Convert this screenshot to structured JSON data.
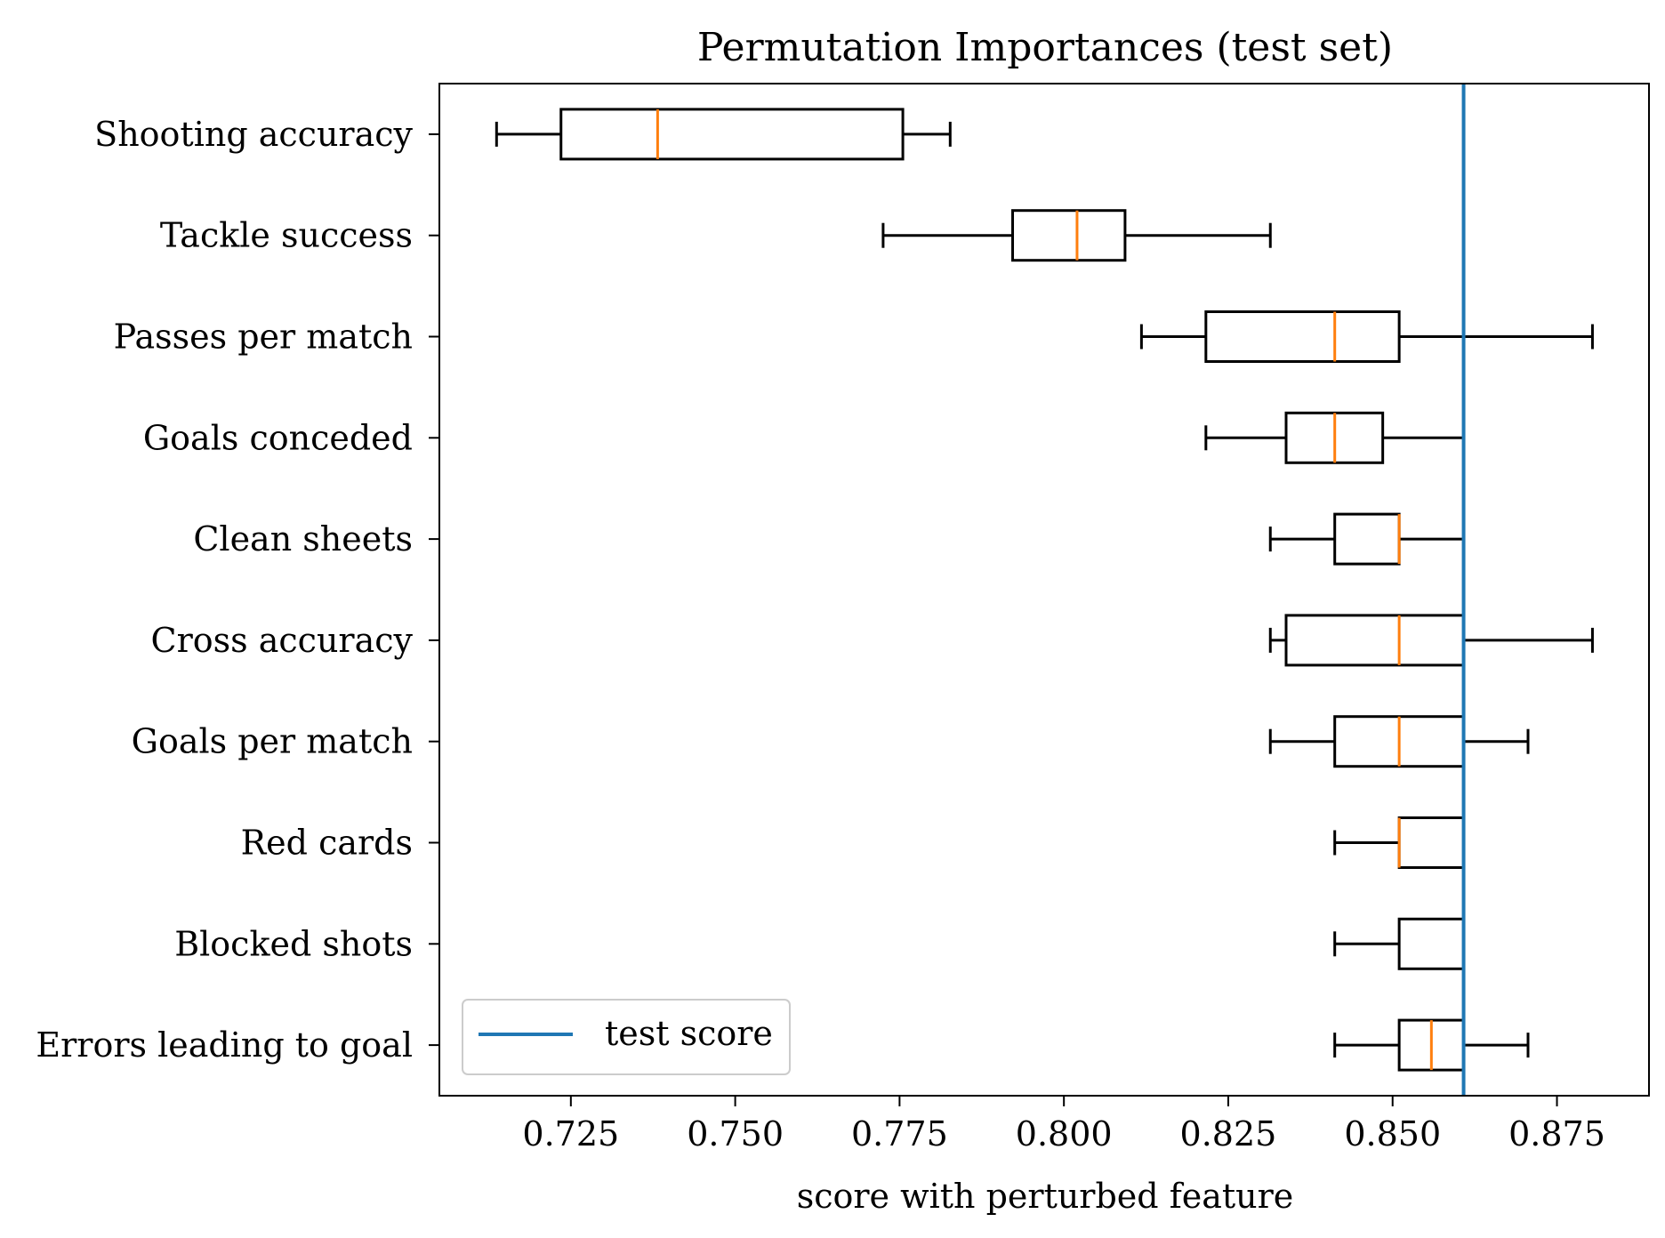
{
  "chart_data": {
    "type": "boxplot",
    "orientation": "horizontal",
    "title": "Permutation Importances (test set)",
    "xlabel": "score with perturbed feature",
    "ylabel": "",
    "xlim": [
      0.705,
      0.889
    ],
    "x_ticks": [
      0.725,
      0.75,
      0.775,
      0.8,
      0.825,
      0.85,
      0.875
    ],
    "x_tick_labels": [
      "0.725",
      "0.750",
      "0.775",
      "0.800",
      "0.825",
      "0.850",
      "0.875"
    ],
    "grid": false,
    "categories": [
      "Shooting accuracy",
      "Tackle success",
      "Passes per match",
      "Goals conceded",
      "Clean sheets",
      "Cross accuracy",
      "Goals per match",
      "Red cards",
      "Blocked shots",
      "Errors leading to goal"
    ],
    "boxes": [
      {
        "whisker_low": 0.7137,
        "q1": 0.7235,
        "median": 0.7382,
        "q3": 0.7755,
        "whisker_high": 0.7827
      },
      {
        "whisker_low": 0.7725,
        "q1": 0.7922,
        "median": 0.802,
        "q3": 0.8093,
        "whisker_high": 0.8314
      },
      {
        "whisker_low": 0.8118,
        "q1": 0.8216,
        "median": 0.8412,
        "q3": 0.851,
        "whisker_high": 0.8804
      },
      {
        "whisker_low": 0.8216,
        "q1": 0.8338,
        "median": 0.8412,
        "q3": 0.8485,
        "whisker_high": 0.8608
      },
      {
        "whisker_low": 0.8314,
        "q1": 0.8412,
        "median": 0.851,
        "q3": 0.851,
        "whisker_high": 0.8608
      },
      {
        "whisker_low": 0.8314,
        "q1": 0.8338,
        "median": 0.851,
        "q3": 0.8608,
        "whisker_high": 0.8804
      },
      {
        "whisker_low": 0.8314,
        "q1": 0.8412,
        "median": 0.851,
        "q3": 0.8608,
        "whisker_high": 0.8706
      },
      {
        "whisker_low": 0.8412,
        "q1": 0.851,
        "median": 0.851,
        "q3": 0.8608,
        "whisker_high": 0.8608
      },
      {
        "whisker_low": 0.8412,
        "q1": 0.851,
        "median": 0.8608,
        "q3": 0.8608,
        "whisker_high": 0.8608
      },
      {
        "whisker_low": 0.8412,
        "q1": 0.851,
        "median": 0.8559,
        "q3": 0.8608,
        "whisker_high": 0.8706
      }
    ],
    "reference_line": {
      "x": 0.8608,
      "label": "test score",
      "color": "#1f77b4"
    },
    "legend": {
      "placement": "bottom-left",
      "entries": [
        "test score"
      ]
    },
    "colors": {
      "box": "#000000",
      "median": "#ff7f0e",
      "reference": "#1f77b4"
    }
  }
}
